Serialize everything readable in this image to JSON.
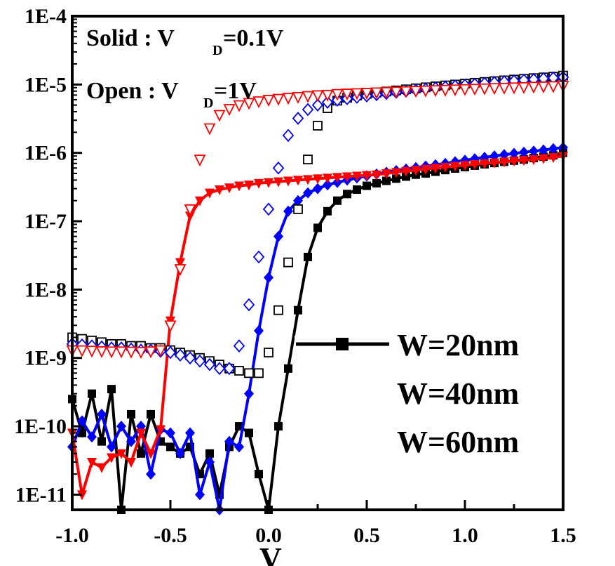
{
  "chart_data": {
    "type": "line",
    "y_scale": "log",
    "xlim": [
      -1.0,
      1.5
    ],
    "ylim": [
      6e-12,
      0.0001
    ],
    "x_ticks": [
      -1.0,
      -0.5,
      0.0,
      0.5,
      1.0,
      1.5
    ],
    "x_tick_labels": [
      "-1.0",
      "-0.5",
      "0.0",
      "0.5",
      "1.0",
      "1.5"
    ],
    "y_ticks": [
      1e-11,
      1e-10,
      1e-09,
      1e-08,
      1e-07,
      1e-06,
      1e-05,
      0.0001
    ],
    "y_tick_labels": [
      "1E-11",
      "1E-10",
      "1E-9",
      "1E-8",
      "1E-7",
      "1E-6",
      "1E-5",
      "1E-4"
    ],
    "xlabel": "V",
    "ylabel": "",
    "annotations": {
      "solid_prefix": "Solid : V",
      "solid_sub": "D",
      "solid_suffix": "=0.1V",
      "open_prefix": "Open : V",
      "open_sub": "D",
      "open_suffix": "=1V"
    },
    "legend_position": "right",
    "x": [
      -1.0,
      -0.95,
      -0.9,
      -0.85,
      -0.8,
      -0.75,
      -0.7,
      -0.65,
      -0.6,
      -0.55,
      -0.5,
      -0.45,
      -0.4,
      -0.35,
      -0.3,
      -0.25,
      -0.2,
      -0.15,
      -0.1,
      -0.05,
      0.0,
      0.05,
      0.1,
      0.15,
      0.2,
      0.25,
      0.3,
      0.35,
      0.4,
      0.45,
      0.5,
      0.55,
      0.6,
      0.65,
      0.7,
      0.75,
      0.8,
      0.85,
      0.9,
      0.95,
      1.0,
      1.05,
      1.1,
      1.15,
      1.2,
      1.25,
      1.3,
      1.35,
      1.4,
      1.45,
      1.5
    ],
    "series": [
      {
        "name": "W=20nm",
        "color": "#000000",
        "marker": "square",
        "filled": true,
        "values": [
          2.5e-10,
          8e-11,
          3e-10,
          6e-11,
          3.5e-10,
          5e-12,
          1.5e-10,
          4e-11,
          1.5e-10,
          6e-11,
          5e-11,
          4e-11,
          5e-11,
          2e-11,
          4e-11,
          1e-11,
          5e-11,
          1e-10,
          8e-11,
          2e-11,
          5e-12,
          1e-10,
          7e-10,
          5e-09,
          3e-08,
          8e-08,
          1.4e-07,
          2e-07,
          2.5e-07,
          2.9e-07,
          3.3e-07,
          3.6e-07,
          3.9e-07,
          4.2e-07,
          4.5e-07,
          4.8e-07,
          5e-07,
          5.3e-07,
          5.6e-07,
          5.9e-07,
          6.2e-07,
          6.5e-07,
          6.8e-07,
          7.1e-07,
          7.4e-07,
          7.7e-07,
          8e-07,
          8.4e-07,
          8.8e-07,
          9.2e-07,
          1e-06
        ]
      },
      {
        "name": "W=40nm",
        "color": "#0000ff",
        "marker": "diamond",
        "filled": true,
        "values": [
          5e-11,
          1.2e-10,
          7e-11,
          1.5e-10,
          5e-11,
          1e-10,
          6e-11,
          1e-10,
          2e-11,
          9e-11,
          8e-11,
          4e-11,
          8e-11,
          1e-11,
          3e-11,
          5e-12,
          6e-11,
          5e-11,
          3e-10,
          2.5e-09,
          1.5e-08,
          6e-08,
          1.4e-07,
          2e-07,
          2.6e-07,
          3e-07,
          3.4e-07,
          3.7e-07,
          4e-07,
          4.3e-07,
          4.6e-07,
          4.9e-07,
          5.2e-07,
          5.5e-07,
          5.8e-07,
          6.1e-07,
          6.4e-07,
          6.7e-07,
          7e-07,
          7.4e-07,
          7.8e-07,
          8.2e-07,
          8.6e-07,
          9e-07,
          9.4e-07,
          9.8e-07,
          1.02e-06,
          1.06e-06,
          1.1e-06,
          1.15e-06,
          1.2e-06
        ]
      },
      {
        "name": "W=60nm",
        "color": "#ff0000",
        "marker": "triangle-down",
        "filled": true,
        "values": [
          8e-11,
          1e-11,
          3e-11,
          2.5e-11,
          3.5e-11,
          4e-11,
          3e-11,
          8e-11,
          4e-11,
          9e-11,
          3.5e-09,
          2.5e-08,
          1.2e-07,
          2e-07,
          2.6e-07,
          2.9e-07,
          3.1e-07,
          3.3e-07,
          3.4e-07,
          3.6e-07,
          3.7e-07,
          3.8e-07,
          3.9e-07,
          4e-07,
          4.1e-07,
          4.2e-07,
          4.3e-07,
          4.4e-07,
          4.5e-07,
          4.6e-07,
          4.7e-07,
          4.8e-07,
          5e-07,
          5.2e-07,
          5.4e-07,
          5.6e-07,
          5.8e-07,
          6e-07,
          6.2e-07,
          6.4e-07,
          6.6e-07,
          6.8e-07,
          7e-07,
          7.2e-07,
          7.4e-07,
          7.6e-07,
          7.8e-07,
          8e-07,
          8.3e-07,
          8.6e-07,
          9e-07
        ]
      },
      {
        "name": "W=20nm",
        "color": "#000000",
        "marker": "square",
        "filled": false,
        "values": [
          2e-09,
          1.9e-09,
          1.8e-09,
          1.7e-09,
          1.6e-09,
          1.6e-09,
          1.5e-09,
          1.5e-09,
          1.4e-09,
          1.4e-09,
          1.3e-09,
          1.2e-09,
          1.1e-09,
          1e-09,
          9e-10,
          8e-10,
          7e-10,
          6.5e-10,
          6e-10,
          6e-10,
          1.2e-09,
          5e-09,
          2.5e-08,
          1.5e-07,
          8e-07,
          2.5e-06,
          4.5e-06,
          5.8e-06,
          6.4e-06,
          6.9e-06,
          7.3e-06,
          7.6e-06,
          7.9e-06,
          8.2e-06,
          8.5e-06,
          8.8e-06,
          9.1e-06,
          9.4e-06,
          9.7e-06,
          1e-05,
          1.03e-05,
          1.06e-05,
          1.09e-05,
          1.12e-05,
          1.15e-05,
          1.18e-05,
          1.21e-05,
          1.24e-05,
          1.27e-05,
          1.3e-05,
          1.35e-05
        ]
      },
      {
        "name": "W=40nm",
        "color": "#0000ff",
        "marker": "diamond",
        "filled": false,
        "values": [
          1.6e-09,
          1.55e-09,
          1.5e-09,
          1.45e-09,
          1.4e-09,
          1.4e-09,
          1.35e-09,
          1.3e-09,
          1.3e-09,
          1.25e-09,
          1.2e-09,
          1.1e-09,
          1e-09,
          9e-10,
          8e-10,
          7e-10,
          7e-10,
          1.5e-09,
          6e-09,
          3e-08,
          1.5e-07,
          6e-07,
          1.8e-06,
          3.2e-06,
          4.3e-06,
          5e-06,
          5.5e-06,
          5.9e-06,
          6.2e-06,
          6.5e-06,
          6.8e-06,
          7.1e-06,
          7.4e-06,
          7.7e-06,
          8e-06,
          8.3e-06,
          8.6e-06,
          8.9e-06,
          9.2e-06,
          9.5e-06,
          9.8e-06,
          1.01e-05,
          1.04e-05,
          1.07e-05,
          1.1e-05,
          1.13e-05,
          1.16e-05,
          1.19e-05,
          1.22e-05,
          1.25e-05,
          1.28e-05
        ]
      },
      {
        "name": "W=60nm",
        "color": "#ff0000",
        "marker": "triangle-down",
        "filled": false,
        "values": [
          1.3e-09,
          1.3e-09,
          1.28e-09,
          1.26e-09,
          1.25e-09,
          1.25e-09,
          1.24e-09,
          1.23e-09,
          1.25e-09,
          1.3e-09,
          3e-09,
          2e-08,
          1.5e-07,
          8e-07,
          2.3e-06,
          3.6e-06,
          4.4e-06,
          5e-06,
          5.4e-06,
          5.7e-06,
          6e-06,
          6.2e-06,
          6.4e-06,
          6.6e-06,
          6.8e-06,
          7e-06,
          7.1e-06,
          7.3e-06,
          7.4e-06,
          7.5e-06,
          7.6e-06,
          7.7e-06,
          7.8e-06,
          7.9e-06,
          8e-06,
          8.1e-06,
          8.2e-06,
          8.3e-06,
          8.4e-06,
          8.5e-06,
          8.6e-06,
          8.7e-06,
          8.8e-06,
          8.9e-06,
          9e-06,
          9.1e-06,
          9.2e-06,
          9.3e-06,
          9.4e-06,
          9.5e-06,
          9.6e-06
        ]
      }
    ]
  }
}
